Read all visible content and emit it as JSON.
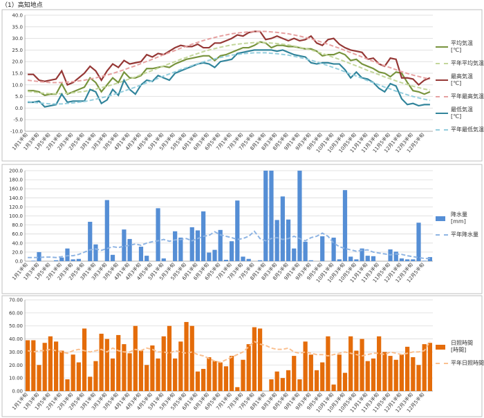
{
  "title": "（1）高知地点",
  "chart_data": [
    {
      "type": "line",
      "legend": "right",
      "grid": true,
      "categories": [
        "1月1半旬",
        null,
        "1月3半旬",
        null,
        "1月5半旬",
        null,
        "2月1半旬",
        null,
        "2月3半旬",
        null,
        "2月5半旬",
        null,
        "3月1半旬",
        null,
        "3月3半旬",
        null,
        "3月5半旬",
        null,
        "4月1半旬",
        null,
        "4月3半旬",
        null,
        "4月5半旬",
        null,
        "5月1半旬",
        null,
        "5月3半旬",
        null,
        "5月5半旬",
        null,
        "6月1半旬",
        null,
        "6月3半旬",
        null,
        "6月5半旬",
        null,
        "7月1半旬",
        null,
        "7月3半旬",
        null,
        "7月5半旬",
        null,
        "8月1半旬",
        null,
        "8月3半旬",
        null,
        "8月5半旬",
        null,
        "9月1半旬",
        null,
        "9月3半旬",
        null,
        "9月5半旬",
        null,
        "10月1半旬",
        null,
        "10月3半旬",
        null,
        "10月5半旬",
        null,
        "11月1半旬",
        null,
        "11月3半旬",
        null,
        "11月5半旬",
        null,
        "12月1半旬",
        null,
        "12月3半旬",
        null,
        "12月5半旬",
        null
      ],
      "ylim": [
        -10,
        40
      ],
      "yticks": [
        {
          "value": -10,
          "label": "-10.0"
        },
        {
          "value": -5,
          "label": "-5.0"
        },
        {
          "value": 0,
          "label": "0.0"
        },
        {
          "value": 5,
          "label": "5.0"
        },
        {
          "value": 10,
          "label": "10.0"
        },
        {
          "value": 15,
          "label": "15.0"
        },
        {
          "value": 20,
          "label": "20.0"
        },
        {
          "value": 25,
          "label": "25.0"
        },
        {
          "value": 30,
          "label": "30.0"
        },
        {
          "value": 35,
          "label": "35.0"
        },
        {
          "value": 40,
          "label": "40.0"
        }
      ],
      "series": [
        {
          "name": "平均気温 [℃]",
          "color": "#77933c",
          "dashed": false,
          "values": [
            7.5,
            7.5,
            7,
            5.5,
            6,
            6,
            10.5,
            6,
            7,
            8,
            9,
            13,
            11,
            7,
            10,
            13,
            11,
            15.5,
            13,
            13,
            14,
            17,
            17,
            17.5,
            18,
            17.5,
            19,
            20,
            21,
            21.5,
            22,
            22.5,
            22.5,
            20.5,
            22.5,
            23,
            24,
            25,
            26,
            26,
            27,
            28.5,
            28,
            26,
            27,
            27,
            26.5,
            26.5,
            26,
            25.5,
            25.5,
            24.5,
            22.5,
            23,
            23,
            24,
            23,
            20.5,
            21,
            19,
            18,
            17,
            15.5,
            15,
            13.5,
            15.5,
            15,
            11,
            7.5,
            7,
            6,
            7
          ]
        },
        {
          "name": "平年平均気温",
          "color": "#c3d69b",
          "dashed": true,
          "values": [
            7.2,
            6.9,
            6.6,
            6.4,
            6.2,
            6.2,
            6.2,
            6.4,
            6.6,
            6.9,
            7.2,
            7.7,
            8.2,
            8.8,
            9.4,
            10.1,
            10.9,
            11.7,
            12.6,
            13.4,
            14.4,
            15.3,
            16.2,
            17.2,
            18.2,
            19.1,
            20.0,
            21.0,
            21.8,
            22.7,
            23.5,
            24.3,
            25.0,
            25.6,
            26.2,
            26.7,
            27.2,
            27.5,
            27.8,
            28.0,
            28.2,
            28.2,
            28.2,
            28.0,
            27.8,
            27.5,
            27.2,
            26.7,
            26.2,
            25.6,
            25.0,
            24.3,
            23.5,
            22.7,
            21.8,
            21.0,
            20.0,
            19.1,
            18.2,
            17.2,
            16.2,
            15.3,
            14.4,
            13.4,
            12.6,
            11.7,
            10.9,
            10.1,
            9.4,
            8.8,
            8.2,
            7.7
          ]
        },
        {
          "name": "最高気温 [℃]",
          "color": "#953735",
          "dashed": false,
          "values": [
            14.5,
            14.5,
            12,
            11.5,
            12,
            12.5,
            16,
            10,
            11,
            13,
            15,
            18,
            16,
            12,
            16,
            19,
            17.5,
            20.5,
            19,
            19.5,
            20,
            23,
            22,
            23.5,
            23,
            24.5,
            26,
            27,
            26.5,
            26.5,
            27.5,
            26,
            26,
            28,
            28,
            29,
            30,
            31.5,
            31,
            32.5,
            33,
            33,
            29.5,
            30,
            31,
            30,
            29,
            30,
            29,
            29.5,
            31,
            28,
            27,
            29.5,
            30,
            27.5,
            26,
            25,
            24.5,
            24,
            21,
            21.5,
            19,
            18,
            21.5,
            21,
            13,
            13,
            12.5,
            10,
            12,
            13
          ]
        },
        {
          "name": "平年最高気温",
          "color": "#e6a0a0",
          "dashed": true,
          "values": [
            12.0,
            11.7,
            11.4,
            11.2,
            11.0,
            11.0,
            11.0,
            11.2,
            11.4,
            11.7,
            12.0,
            12.5,
            13.0,
            13.6,
            14.2,
            14.9,
            15.7,
            16.5,
            17.4,
            18.2,
            19.2,
            20.1,
            21.0,
            22.0,
            23.0,
            23.9,
            24.8,
            25.8,
            26.6,
            27.5,
            28.3,
            29.1,
            29.8,
            30.4,
            31.0,
            31.5,
            32.0,
            32.3,
            32.6,
            32.8,
            33.0,
            33.0,
            33.0,
            32.8,
            32.6,
            32.3,
            32.0,
            31.5,
            31.0,
            30.4,
            29.8,
            29.1,
            28.3,
            27.5,
            26.6,
            25.8,
            24.8,
            23.9,
            23.0,
            22.0,
            21.0,
            20.1,
            19.2,
            18.2,
            17.4,
            16.5,
            15.7,
            14.9,
            14.2,
            13.6,
            13.0,
            12.5
          ]
        },
        {
          "name": "最低気温 [℃]",
          "color": "#31849b",
          "dashed": false,
          "values": [
            2.5,
            2.5,
            3,
            0.5,
            1,
            1.5,
            6,
            2.5,
            3,
            3,
            3,
            8,
            7,
            2,
            3.5,
            8,
            5.5,
            12,
            8,
            6,
            10,
            12,
            11.5,
            14,
            13,
            12,
            15,
            16,
            17,
            18,
            19,
            19.5,
            19,
            17.5,
            20,
            20.5,
            21,
            23.5,
            24,
            24.5,
            25,
            25,
            25,
            25,
            24.5,
            25,
            24,
            23,
            22.5,
            22,
            19.5,
            19,
            19.5,
            19.5,
            19,
            19,
            16.5,
            13,
            15.5,
            13,
            12.5,
            11,
            8.5,
            7,
            10.5,
            9.5,
            4,
            1.5,
            2,
            1,
            1.5,
            1.5
          ]
        },
        {
          "name": "平年最低気温",
          "color": "#93cddd",
          "dashed": true,
          "values": [
            2.8,
            2.5,
            2.2,
            2.0,
            1.8,
            1.8,
            1.8,
            2.0,
            2.2,
            2.5,
            2.8,
            3.3,
            3.8,
            4.4,
            5.0,
            5.7,
            6.5,
            7.3,
            8.2,
            9.0,
            10.0,
            10.9,
            11.8,
            12.8,
            13.8,
            14.7,
            15.6,
            16.6,
            17.4,
            18.3,
            19.1,
            19.9,
            20.6,
            21.2,
            21.8,
            22.3,
            22.8,
            23.1,
            23.4,
            23.6,
            23.8,
            23.8,
            23.8,
            23.6,
            23.4,
            23.1,
            22.8,
            22.3,
            21.8,
            21.2,
            20.6,
            19.9,
            19.1,
            18.3,
            17.4,
            16.6,
            15.6,
            14.7,
            13.8,
            12.8,
            11.8,
            10.9,
            10.0,
            9.0,
            8.2,
            7.3,
            6.5,
            5.7,
            5.0,
            4.4,
            3.8,
            3.3
          ]
        }
      ]
    },
    {
      "type": "bar",
      "legend": "right",
      "grid": true,
      "categories": [
        "1月1半旬",
        null,
        "1月3半旬",
        null,
        "1月5半旬",
        null,
        "2月1半旬",
        null,
        "2月3半旬",
        null,
        "2月5半旬",
        null,
        "3月1半旬",
        null,
        "3月3半旬",
        null,
        "3月5半旬",
        null,
        "4月1半旬",
        null,
        "4月3半旬",
        null,
        "4月5半旬",
        null,
        "5月1半旬",
        null,
        "5月3半旬",
        null,
        "5月5半旬",
        null,
        "6月1半旬",
        null,
        "6月3半旬",
        null,
        "6月5半旬",
        null,
        "7月1半旬",
        null,
        "7月3半旬",
        null,
        "7月5半旬",
        null,
        "8月1半旬",
        null,
        "8月3半旬",
        null,
        "8月5半旬",
        null,
        "9月1半旬",
        null,
        "9月3半旬",
        null,
        "9月5半旬",
        null,
        "10月1半旬",
        null,
        "10月3半旬",
        null,
        "10月5半旬",
        null,
        "11月1半旬",
        null,
        "11月3半旬",
        null,
        "11月5半旬",
        null,
        "12月1半旬",
        null,
        "12月3半旬",
        null,
        "12月5半旬",
        null
      ],
      "ylim": [
        0,
        200
      ],
      "yticks": [
        {
          "value": 0,
          "label": "0.0"
        },
        {
          "value": 20,
          "label": "20.0"
        },
        {
          "value": 40,
          "label": "40.0"
        },
        {
          "value": 60,
          "label": "60.0"
        },
        {
          "value": 80,
          "label": "80.0"
        },
        {
          "value": 100,
          "label": "100.0"
        },
        {
          "value": 120,
          "label": "120.0"
        },
        {
          "value": 140,
          "label": "140.0"
        },
        {
          "value": 160,
          "label": "160.0"
        },
        {
          "value": 180,
          "label": "180.0"
        },
        {
          "value": 200,
          "label": "200.0"
        }
      ],
      "series": [
        {
          "name": "降水量 [mm]",
          "color": "#558ed5",
          "mark": "bar",
          "values": [
            0,
            1,
            20,
            0,
            0,
            2,
            8,
            28,
            4,
            5,
            0,
            87,
            37,
            0,
            135,
            14,
            0,
            70,
            49,
            0,
            32,
            12,
            0,
            117,
            6,
            0,
            66,
            52,
            0,
            75,
            68,
            110,
            19,
            25,
            69,
            3,
            44,
            134,
            10,
            5,
            0,
            2,
            200,
            200,
            91,
            143,
            92,
            28,
            200,
            43,
            2,
            0,
            55,
            0,
            52,
            4,
            157,
            10,
            4,
            28,
            12,
            11,
            0,
            0,
            26,
            21,
            6,
            4,
            4,
            85,
            1,
            9
          ]
        },
        {
          "name": "平年降水量",
          "color": "#8eb4e3",
          "mark": "line",
          "dashed": true,
          "values": [
            8,
            8,
            8,
            9,
            9,
            8,
            10,
            12,
            12,
            15,
            20,
            25,
            27,
            24,
            28,
            32,
            30,
            33,
            35,
            38,
            35,
            40,
            43,
            45,
            48,
            44,
            47,
            48,
            50,
            45,
            50,
            55,
            57,
            65,
            58,
            55,
            52,
            48,
            50,
            55,
            66,
            50,
            45,
            50,
            52,
            48,
            50,
            55,
            50,
            45,
            52,
            55,
            62,
            55,
            40,
            32,
            28,
            25,
            22,
            24,
            25,
            20,
            18,
            16,
            14,
            16,
            15,
            12,
            10,
            8,
            6,
            6
          ]
        }
      ]
    },
    {
      "type": "bar",
      "legend": "right",
      "grid": true,
      "categories": [
        "1月1半旬",
        null,
        "1月3半旬",
        null,
        "1月5半旬",
        null,
        "2月1半旬",
        null,
        "2月3半旬",
        null,
        "2月5半旬",
        null,
        "3月1半旬",
        null,
        "3月3半旬",
        null,
        "3月5半旬",
        null,
        "4月1半旬",
        null,
        "4月3半旬",
        null,
        "4月5半旬",
        null,
        "5月1半旬",
        null,
        "5月3半旬",
        null,
        "5月5半旬",
        null,
        "6月1半旬",
        null,
        "6月3半旬",
        null,
        "6月5半旬",
        null,
        "7月1半旬",
        null,
        "7月3半旬",
        null,
        "7月5半旬",
        null,
        "8月1半旬",
        null,
        "8月3半旬",
        null,
        "8月5半旬",
        null,
        "9月1半旬",
        null,
        "9月3半旬",
        null,
        "9月5半旬",
        null,
        "10月1半旬",
        null,
        "10月3半旬",
        null,
        "10月5半旬",
        null,
        "11月1半旬",
        null,
        "11月3半旬",
        null,
        "11月5半旬",
        null,
        "12月1半旬",
        null,
        "12月3半旬",
        null,
        "12月5半旬",
        null
      ],
      "ylim": [
        0,
        70
      ],
      "yticks": [
        {
          "value": 0,
          "label": "0.00"
        },
        {
          "value": 10,
          "label": "10.00"
        },
        {
          "value": 20,
          "label": "20.00"
        },
        {
          "value": 30,
          "label": "30.00"
        },
        {
          "value": 40,
          "label": "40.00"
        },
        {
          "value": 50,
          "label": "50.00"
        },
        {
          "value": 60,
          "label": "60.00"
        },
        {
          "value": 70,
          "label": "70.00"
        }
      ],
      "series": [
        {
          "name": "日照時間 [時間]",
          "color": "#e46c0a",
          "mark": "bar",
          "values": [
            39,
            39,
            20,
            37,
            42,
            38,
            31,
            9,
            28,
            22,
            48,
            11,
            23,
            44,
            40,
            25,
            43,
            36,
            29,
            50,
            31,
            20,
            35,
            25,
            42,
            50,
            25,
            38,
            53,
            50,
            15,
            17,
            26,
            23,
            22,
            19,
            27,
            3,
            24,
            36,
            49,
            48,
            0,
            9,
            15,
            10,
            16,
            27,
            9,
            38,
            28,
            16,
            22,
            42,
            5,
            28,
            14,
            42,
            31,
            40,
            23,
            25,
            42,
            30,
            27,
            24,
            28,
            34,
            26,
            20,
            36,
            37
          ]
        },
        {
          "name": "平年日照時間",
          "color": "#fac090",
          "mark": "line",
          "dashed": true,
          "values": [
            31,
            30,
            31,
            31,
            32,
            31,
            30,
            29,
            31,
            32,
            31,
            30,
            31,
            32,
            30,
            33,
            31,
            30,
            30,
            32,
            31,
            33,
            32,
            30,
            30,
            29,
            31,
            30,
            29,
            30,
            28,
            27,
            25,
            23,
            22,
            24,
            26,
            28,
            30,
            34,
            38,
            36,
            35,
            33,
            32,
            32,
            33,
            30,
            29,
            30,
            29,
            28,
            28,
            27,
            28,
            29,
            30,
            29,
            28,
            27,
            28,
            29,
            29,
            28,
            30,
            29,
            28,
            29,
            30,
            30,
            31,
            38
          ]
        }
      ]
    }
  ]
}
